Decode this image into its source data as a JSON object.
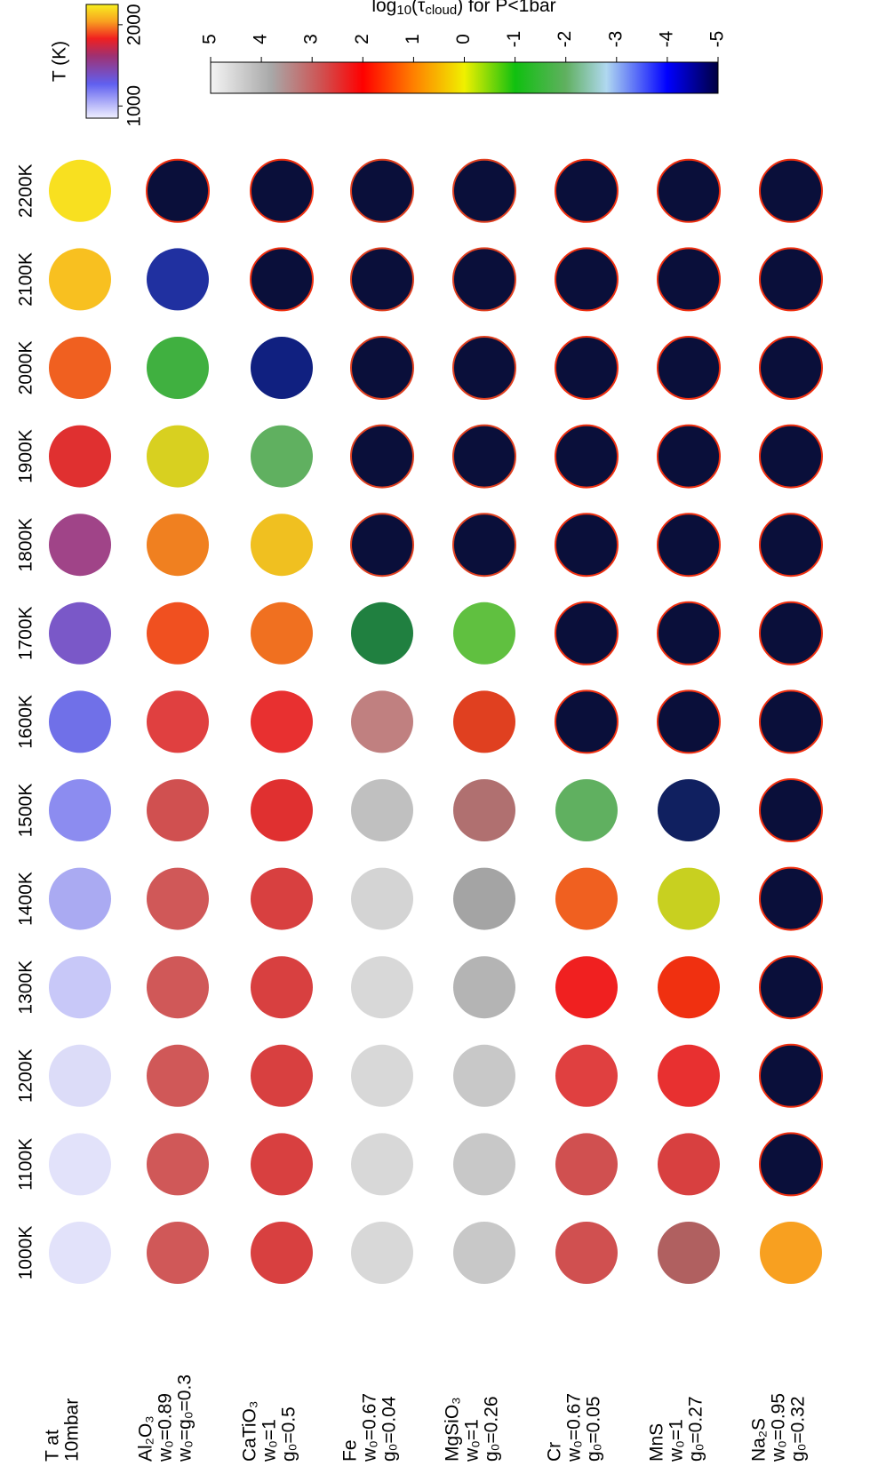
{
  "chart_data": {
    "type": "sphere-grid",
    "columns": [
      "1000K",
      "1100K",
      "1200K",
      "1300K",
      "1400K",
      "1500K",
      "1600K",
      "1700K",
      "1800K",
      "1900K",
      "2000K",
      "2100K",
      "2200K"
    ],
    "rows": [
      [
        "T at",
        "10mbar"
      ],
      [
        "Al₂O₃",
        "w₀=0.89",
        "w₀=g₀=0.3"
      ],
      [
        "CaTiO₃",
        "w₀=1",
        "g₀=0.5"
      ],
      [
        "Fe",
        "w₀=0.67",
        "g₀=0.04"
      ],
      [
        "MgSiO₃",
        "w₀=1",
        "g₀=0.26"
      ],
      [
        "Cr",
        "w₀=0.67",
        "g₀=0.05"
      ],
      [
        "MnS",
        "w₀=1",
        "g₀=0.27"
      ],
      [
        "Na₂S",
        "w₀=0.95",
        "g₀=0.32"
      ]
    ],
    "colorbar": {
      "label": [
        "log",
        "10",
        "(τ",
        "cloud",
        ") for P<1bar"
      ],
      "lim": [
        5,
        -5
      ],
      "ticks": [
        5,
        4,
        3,
        2,
        1,
        0,
        -1,
        -2,
        -3,
        -4,
        -5
      ]
    },
    "temperature_colorbar": {
      "label": "T (K)",
      "lim": [
        850,
        2250
      ],
      "ticks": [
        1000,
        2000
      ]
    }
  }
}
